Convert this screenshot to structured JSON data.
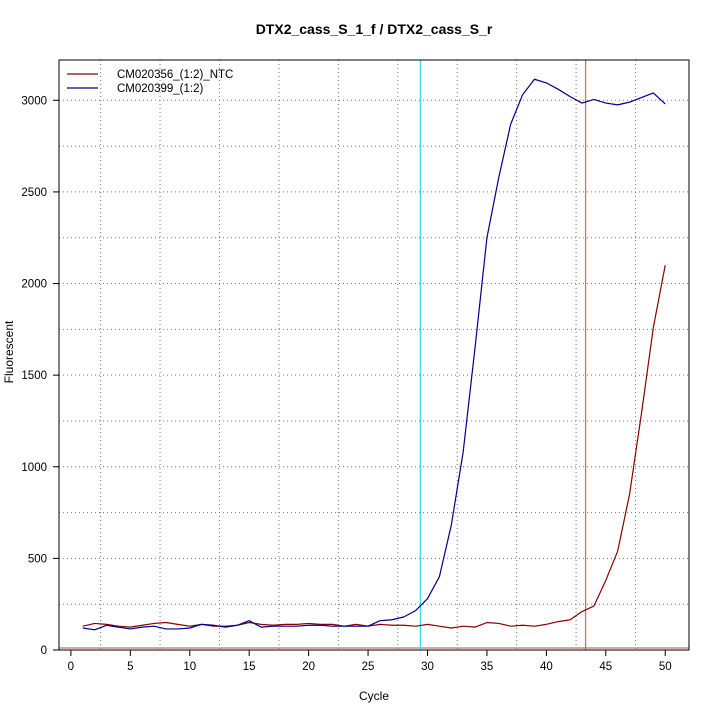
{
  "chart_data": {
    "type": "line",
    "title": "DTX2_cass_S_1_f / DTX2_cass_S_r",
    "xlabel": "Cycle",
    "ylabel": "Fluorescent",
    "xlim": [
      -1,
      52
    ],
    "ylim": [
      0,
      3220
    ],
    "xticks": [
      0,
      5,
      10,
      15,
      20,
      25,
      30,
      35,
      40,
      45,
      50
    ],
    "yticks": [
      0,
      500,
      1000,
      1500,
      2000,
      2500,
      3000
    ],
    "grid": true,
    "grid_style": "dotted",
    "legend_position": "top-left",
    "vertical_lines": [
      {
        "x": 29.4,
        "color": "#40e0e0"
      },
      {
        "x": 43.3,
        "color": "#c87070"
      }
    ],
    "horizontal_lines": [
      {
        "y": 0,
        "color": "#c87070"
      }
    ],
    "series": [
      {
        "name": "CM020356_(1:2)_NTC",
        "color": "#8b0000",
        "x": [
          1,
          2,
          3,
          4,
          5,
          6,
          7,
          8,
          9,
          10,
          11,
          12,
          13,
          14,
          15,
          16,
          17,
          18,
          19,
          20,
          21,
          22,
          23,
          24,
          25,
          26,
          27,
          28,
          29,
          30,
          31,
          32,
          33,
          34,
          35,
          36,
          37,
          38,
          39,
          40,
          41,
          42,
          43,
          44,
          45,
          46,
          47,
          48,
          49,
          50
        ],
        "y": [
          130,
          145,
          140,
          130,
          125,
          135,
          145,
          150,
          140,
          130,
          140,
          130,
          130,
          135,
          150,
          140,
          135,
          140,
          140,
          145,
          140,
          140,
          130,
          140,
          130,
          140,
          135,
          135,
          130,
          140,
          130,
          120,
          130,
          125,
          150,
          145,
          130,
          135,
          130,
          140,
          155,
          165,
          210,
          240,
          380,
          540,
          850,
          1290,
          1760,
          2100
        ]
      },
      {
        "name": "CM020399_(1:2)",
        "color": "#00008b",
        "x": [
          1,
          2,
          3,
          4,
          5,
          6,
          7,
          8,
          9,
          10,
          11,
          12,
          13,
          14,
          15,
          16,
          17,
          18,
          19,
          20,
          21,
          22,
          23,
          24,
          25,
          26,
          27,
          28,
          29,
          30,
          31,
          32,
          33,
          34,
          35,
          36,
          37,
          38,
          39,
          40,
          41,
          42,
          43,
          44,
          45,
          46,
          47,
          48,
          49,
          50
        ],
        "y": [
          120,
          110,
          135,
          125,
          115,
          125,
          130,
          115,
          115,
          120,
          140,
          135,
          125,
          135,
          160,
          125,
          130,
          130,
          130,
          135,
          135,
          130,
          130,
          130,
          130,
          160,
          165,
          180,
          215,
          280,
          400,
          680,
          1080,
          1650,
          2250,
          2580,
          2870,
          3030,
          3115,
          3095,
          3060,
          3020,
          2985,
          3005,
          2985,
          2975,
          2990,
          3015,
          3040,
          2980
        ]
      }
    ]
  }
}
